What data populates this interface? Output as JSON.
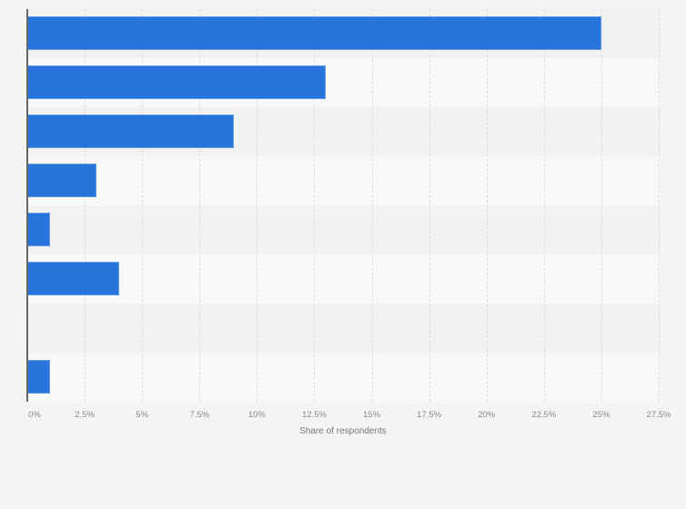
{
  "chart_data": {
    "type": "bar",
    "orientation": "horizontal",
    "title": "",
    "xlabel": "Share of respondents",
    "ylabel": "",
    "categories": [
      "",
      "",
      "",
      "",
      "",
      "",
      "",
      ""
    ],
    "values": [
      25,
      13,
      9,
      3,
      1,
      4,
      0,
      1
    ],
    "xlim": [
      0,
      27.5
    ],
    "x_ticks": [
      "0%",
      "2.5%",
      "5%",
      "7.5%",
      "10%",
      "12.5%",
      "15%",
      "17.5%",
      "20%",
      "22.5%",
      "25%",
      "27.5%"
    ],
    "grid": true,
    "legend": null,
    "bar_color": "#2775db"
  },
  "axis": {
    "xlabel": "Share of respondents",
    "ticks": [
      "0%",
      "2.5%",
      "5%",
      "7.5%",
      "10%",
      "12.5%",
      "15%",
      "17.5%",
      "20%",
      "22.5%",
      "25%",
      "27.5%"
    ]
  },
  "colors": {
    "bar": "#2775db",
    "row_a": "#f2f2f2",
    "row_b": "#f8f8f8",
    "background": "#f4f4f4"
  }
}
